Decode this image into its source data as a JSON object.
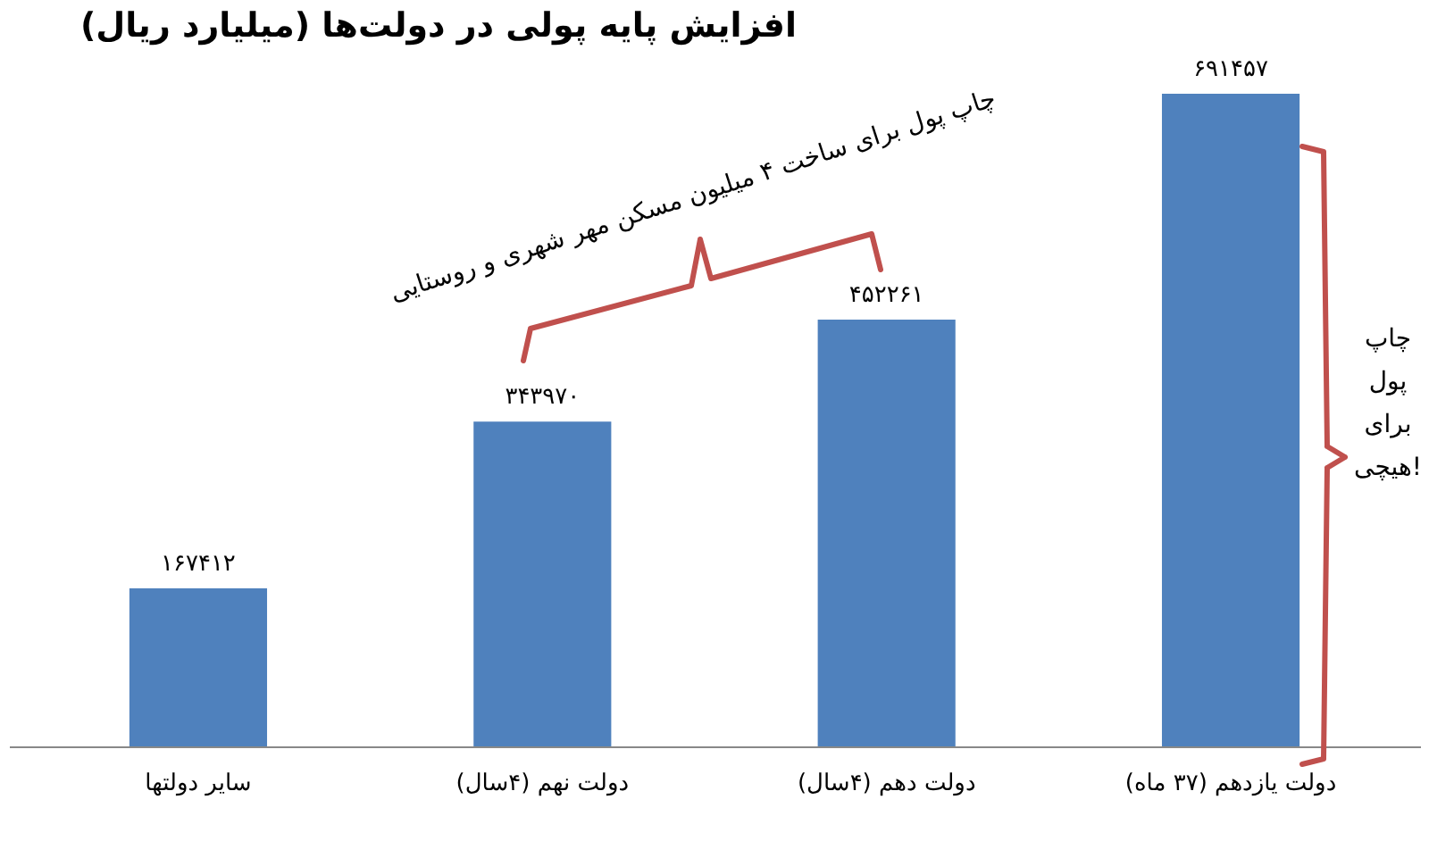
{
  "chart_data": {
    "type": "bar",
    "title": "افزایش پایه پولی در دولت‌ها (میلیارد ریال)",
    "categories": [
      "سایر دولتها",
      "دولت نهم (۴سال)",
      "دولت دهم (۴سال)",
      "دولت یازدهم (۳۷ ماه)"
    ],
    "values": [
      167412,
      343970,
      452261,
      691457
    ],
    "value_labels": [
      "۱۶۷۴۱۲",
      "۳۴۳۹۷۰",
      "۴۵۲۲۶۱",
      "۶۹۱۴۵۷"
    ],
    "color": "#4f81bd",
    "tick_labels": "x",
    "annotations": [
      "چاپ پول برای ساخت ۴ میلیون مسکن مهر شهری و روستایی",
      "چاپ پول برای هیچی!"
    ]
  }
}
